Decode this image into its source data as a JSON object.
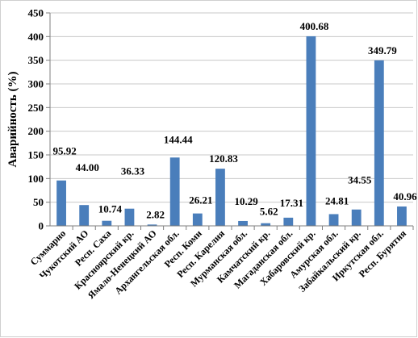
{
  "chart_data": {
    "type": "bar",
    "title": "",
    "xlabel": "",
    "ylabel": "Аварийность (%)",
    "ylim": [
      0,
      450
    ],
    "yticks": [
      0,
      50,
      100,
      150,
      200,
      250,
      300,
      350,
      400,
      450
    ],
    "grid": true,
    "bar_color": "#4a7ebb",
    "categories": [
      "Суммарно",
      "Чукотский АО",
      "Респ. Саха",
      "Красноярский кр.",
      "Ямало-Ненецкий АО",
      "Архангельская обл.",
      "Респ. Коми",
      "Респ. Карелия",
      "Мурманская обл.",
      "Камчатский кр.",
      "Магаданская обл.",
      "Хабаровский кр.",
      "Амурская обл.",
      "Забайкальский кр.",
      "Иркутская обл.",
      "Респ. Бурятия"
    ],
    "values": [
      95.92,
      44.0,
      10.74,
      36.33,
      2.82,
      144.44,
      26.21,
      120.83,
      10.29,
      5.62,
      17.31,
      400.68,
      24.81,
      34.55,
      349.79,
      40.96
    ],
    "data_labels": [
      "95.92",
      "44.00",
      "10.74",
      "36.33",
      "2.82",
      "144.44",
      "26.21",
      "120.83",
      "10.29",
      "5.62",
      "17.31",
      "400.68",
      "24.81",
      "34.55",
      "349.79",
      "40.96"
    ]
  }
}
